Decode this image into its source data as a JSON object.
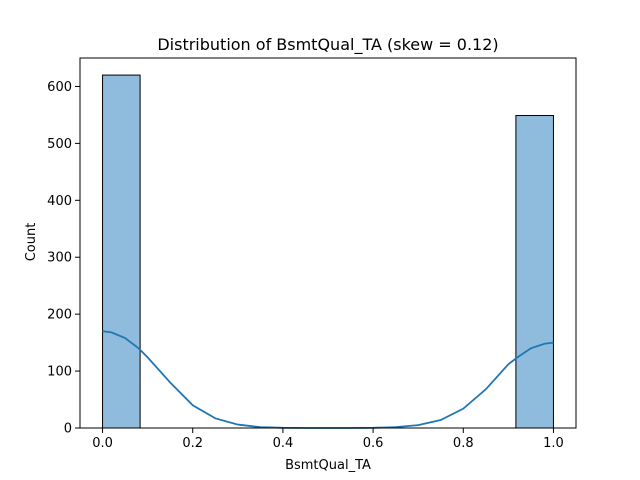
{
  "chart_data": {
    "type": "bar",
    "title": "Distribution of BsmtQual_TA (skew = 0.12)",
    "xlabel": "BsmtQual_TA",
    "ylabel": "Count",
    "xlim": [
      -0.05,
      1.05
    ],
    "ylim": [
      0,
      650
    ],
    "xticks": [
      0.0,
      0.2,
      0.4,
      0.6,
      0.8,
      1.0
    ],
    "xtick_labels": [
      "0.0",
      "0.2",
      "0.4",
      "0.6",
      "0.8",
      "1.0"
    ],
    "yticks": [
      0,
      100,
      200,
      300,
      400,
      500,
      600
    ],
    "ytick_labels": [
      "0",
      "100",
      "200",
      "300",
      "400",
      "500",
      "600"
    ],
    "bins": [
      {
        "x0": 0.0,
        "x1": 0.0833,
        "count": 620
      },
      {
        "x0": 0.9167,
        "x1": 1.0,
        "count": 549
      }
    ],
    "kde": {
      "x": [
        0.0,
        0.02,
        0.05,
        0.08,
        0.1,
        0.15,
        0.2,
        0.25,
        0.3,
        0.35,
        0.4,
        0.45,
        0.5,
        0.55,
        0.6,
        0.65,
        0.7,
        0.75,
        0.8,
        0.85,
        0.9,
        0.92,
        0.95,
        0.98,
        1.0
      ],
      "y": [
        170,
        168,
        158,
        140,
        124,
        80,
        40,
        17,
        6,
        1.5,
        0.3,
        0,
        0,
        0,
        0.3,
        1.5,
        5,
        14,
        34,
        68,
        112,
        124,
        140,
        148,
        150
      ]
    },
    "colors": {
      "bar_fill": "#8fbcdc",
      "bar_edge": "#000000",
      "kde_line": "#1f77b4"
    },
    "grid": false,
    "legend": "none"
  }
}
